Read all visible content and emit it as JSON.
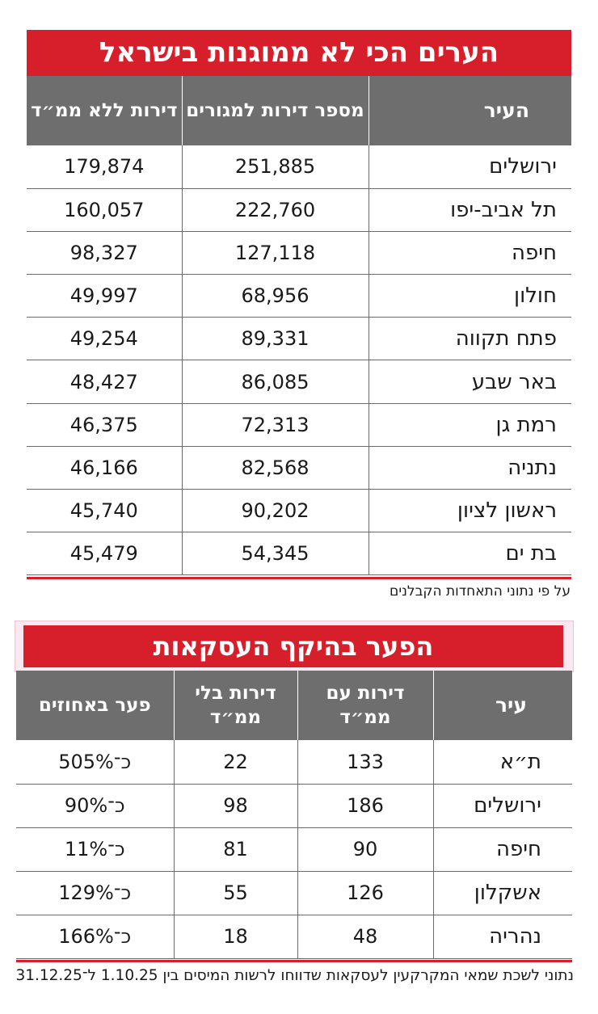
{
  "table1": {
    "title": "הערים הכי לא ממוגנות בישראל",
    "headers": [
      "העיר",
      "מספר דירות למגורים",
      "דירות ללא ממ״ד"
    ],
    "rows": [
      [
        "ירושלים",
        "251,885",
        "179,874"
      ],
      [
        "תל אביב-יפו",
        "222,760",
        "160,057"
      ],
      [
        "חיפה",
        "127,118",
        "98,327"
      ],
      [
        "חולון",
        "68,956",
        "49,997"
      ],
      [
        "פתח תקווה",
        "89,331",
        "49,254"
      ],
      [
        "באר שבע",
        "86,085",
        "48,427"
      ],
      [
        "רמת גן",
        "72,313",
        "46,375"
      ],
      [
        "נתניה",
        "82,568",
        "46,166"
      ],
      [
        "ראשון לציון",
        "90,202",
        "45,740"
      ],
      [
        "בת ים",
        "54,345",
        "45,479"
      ]
    ],
    "source": "על פי נתוני התאחדות הקבלנים"
  },
  "table2": {
    "title": "הפער בהיקף העסקאות",
    "headers": [
      "עיר",
      "דירות עם ממ״ד",
      "דירות בלי ממ״ד",
      "פער באחוזים"
    ],
    "rows": [
      [
        "ת״א",
        "133",
        "22",
        "כ־505%"
      ],
      [
        "ירושלים",
        "186",
        "98",
        "כ־90%"
      ],
      [
        "חיפה",
        "90",
        "81",
        "כ־11%"
      ],
      [
        "אשקלון",
        "126",
        "55",
        "כ־129%"
      ],
      [
        "נהריה",
        "48",
        "18",
        "כ־166%"
      ]
    ],
    "source": "נתוני לשכת שמאי המקרקעין לעסקאות שדווחו לרשות המיסים בין 1.10.25 ל־31.12.25"
  },
  "colors": {
    "accent": "#d71f2b",
    "header_bg": "#6e6e6e"
  }
}
